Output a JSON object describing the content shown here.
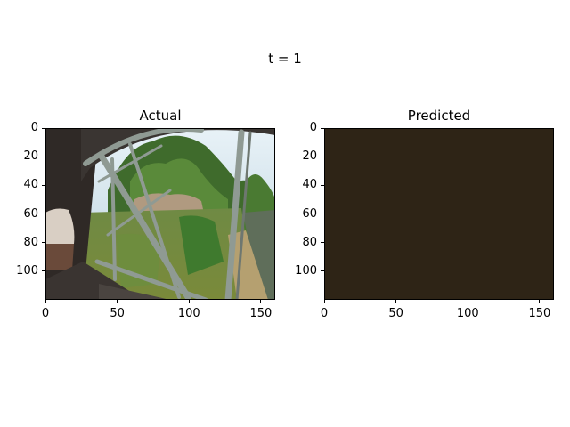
{
  "figure": {
    "suptitle": "t = 1"
  },
  "panels": [
    {
      "title": "Actual",
      "image": "train-window-bridge-scene",
      "xticks": [
        "0",
        "50",
        "100",
        "150"
      ],
      "yticks": [
        "0",
        "20",
        "40",
        "60",
        "80",
        "100"
      ],
      "xlim": [
        0,
        160
      ],
      "ylim": [
        120,
        0
      ]
    },
    {
      "title": "Predicted",
      "image": "solid-dark-brown-frame",
      "fill_color": "#2e2416",
      "xticks": [
        "0",
        "50",
        "100",
        "150"
      ],
      "yticks": [
        "0",
        "20",
        "40",
        "60",
        "80",
        "100"
      ],
      "xlim": [
        0,
        160
      ],
      "ylim": [
        120,
        0
      ]
    }
  ],
  "colors": {
    "sky": "#cfe3ee",
    "foliage": "#4d7a34",
    "steel": "#8f9a93",
    "train_interior": "#2b2624",
    "predicted_fill": "#2e2416"
  }
}
